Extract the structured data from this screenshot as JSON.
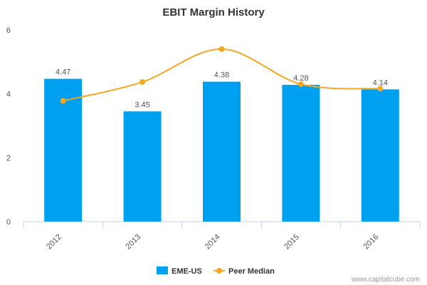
{
  "chart_data": {
    "type": "bar",
    "title": "EBIT Margin History",
    "categories": [
      "2012",
      "2013",
      "2014",
      "2015",
      "2016"
    ],
    "series": [
      {
        "name": "EME-US",
        "kind": "bar",
        "values": [
          4.47,
          3.45,
          4.38,
          4.28,
          4.14
        ],
        "data_labels": [
          "4.47",
          "3.45",
          "4.38",
          "4.28",
          "4.14"
        ]
      },
      {
        "name": "Peer Median",
        "kind": "line",
        "smooth": true,
        "values": [
          3.78,
          4.37,
          5.4,
          4.3,
          4.16
        ]
      }
    ],
    "ylim": [
      0,
      6
    ],
    "yticks": [
      0,
      2,
      4,
      6
    ],
    "xlabel": "",
    "ylabel": "",
    "grid": false,
    "legend_position": "bottom-center"
  },
  "colors": {
    "bar": "#00A0F0",
    "line": "#F5A623",
    "axis": "#C0D0E0",
    "text": "#555555"
  },
  "credit": "www.capitalcube.com"
}
